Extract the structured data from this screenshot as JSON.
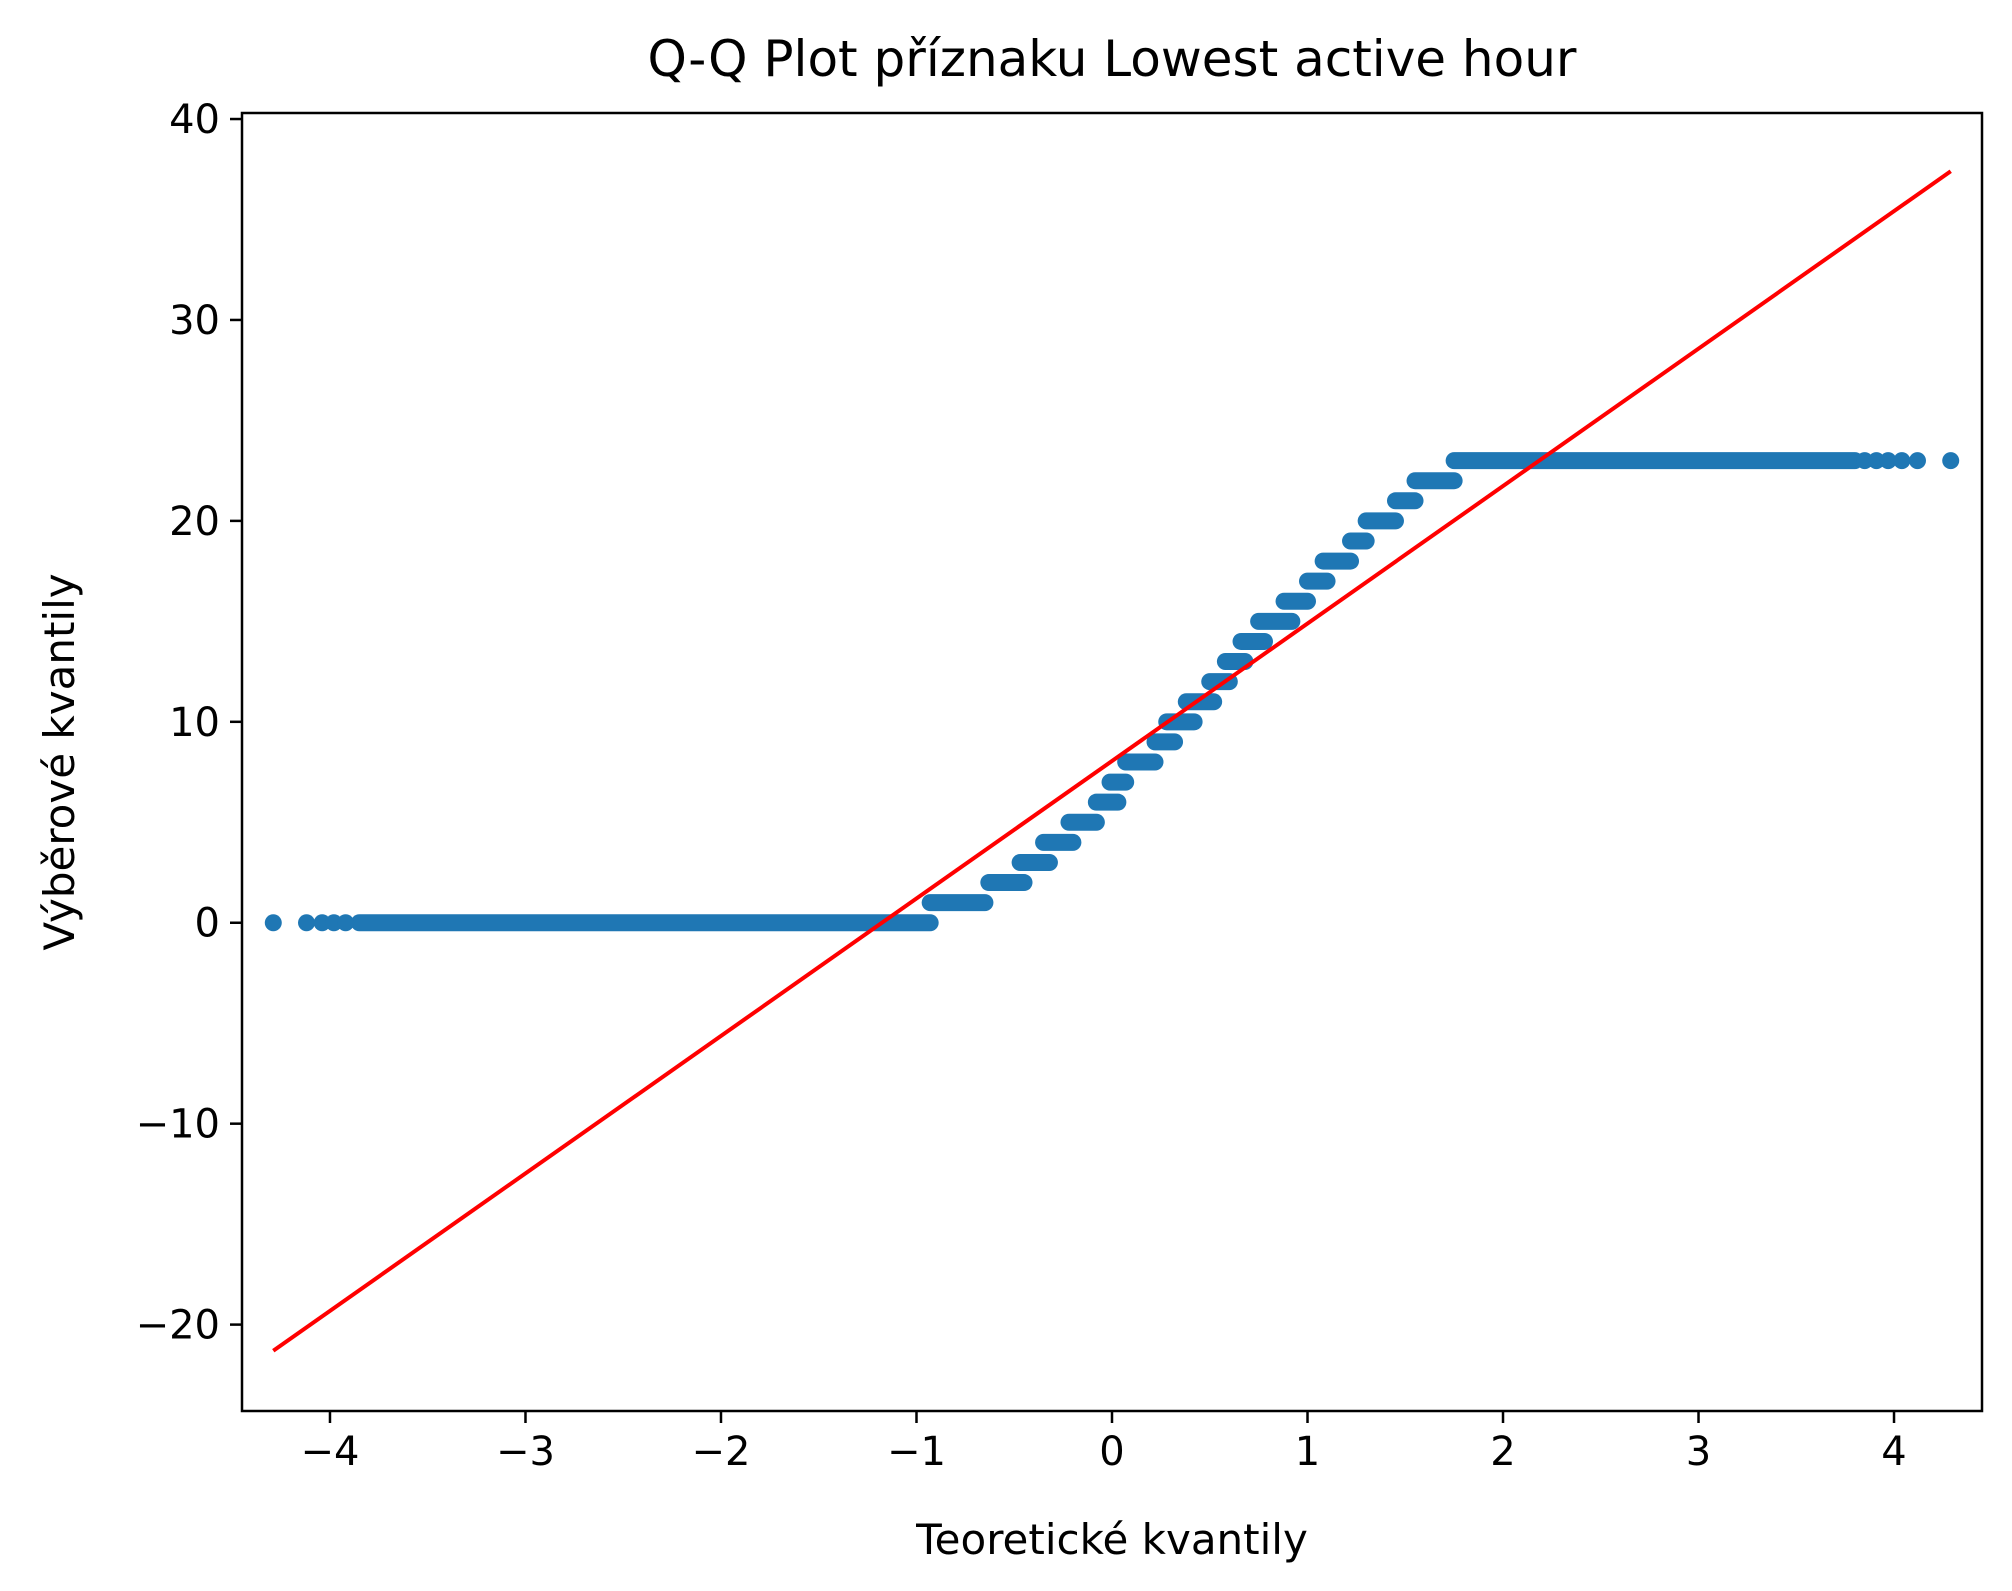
{
  "chart_data": {
    "type": "scatter",
    "title": "Q-Q Plot příznaku Lowest active hour",
    "xlabel": "Teoretické kvantily",
    "ylabel": "Výběrové kvantily",
    "xlim": [
      -4.45,
      4.45
    ],
    "ylim": [
      -24.3,
      40.3
    ],
    "x_ticks": [
      -4,
      -3,
      -2,
      -1,
      0,
      1,
      2,
      3,
      4
    ],
    "x_tick_labels": [
      "−4",
      "−3",
      "−2",
      "−1",
      "0",
      "1",
      "2",
      "3",
      "4"
    ],
    "y_ticks": [
      -20,
      -10,
      0,
      10,
      20,
      30,
      40
    ],
    "y_tick_labels": [
      "−20",
      "−10",
      "0",
      "10",
      "20",
      "30",
      "40"
    ],
    "grid": false,
    "legend": "none",
    "series": [
      {
        "kind": "points",
        "color": "#1f77b4",
        "segments": [
          {
            "y": 0,
            "x_from": -3.85,
            "x_to": -0.93
          },
          {
            "y": 1,
            "x_from": -0.93,
            "x_to": -0.65
          },
          {
            "y": 2,
            "x_from": -0.63,
            "x_to": -0.45
          },
          {
            "y": 3,
            "x_from": -0.47,
            "x_to": -0.32
          },
          {
            "y": 4,
            "x_from": -0.35,
            "x_to": -0.2
          },
          {
            "y": 5,
            "x_from": -0.22,
            "x_to": -0.08
          },
          {
            "y": 6,
            "x_from": -0.08,
            "x_to": 0.03
          },
          {
            "y": 7,
            "x_from": -0.01,
            "x_to": 0.07
          },
          {
            "y": 8,
            "x_from": 0.07,
            "x_to": 0.22
          },
          {
            "y": 9,
            "x_from": 0.22,
            "x_to": 0.32
          },
          {
            "y": 10,
            "x_from": 0.28,
            "x_to": 0.42
          },
          {
            "y": 11,
            "x_from": 0.38,
            "x_to": 0.52
          },
          {
            "y": 12,
            "x_from": 0.5,
            "x_to": 0.6
          },
          {
            "y": 13,
            "x_from": 0.58,
            "x_to": 0.68
          },
          {
            "y": 14,
            "x_from": 0.66,
            "x_to": 0.78
          },
          {
            "y": 15,
            "x_from": 0.75,
            "x_to": 0.92
          },
          {
            "y": 16,
            "x_from": 0.88,
            "x_to": 1.0
          },
          {
            "y": 17,
            "x_from": 1.0,
            "x_to": 1.1
          },
          {
            "y": 18,
            "x_from": 1.08,
            "x_to": 1.22
          },
          {
            "y": 19,
            "x_from": 1.22,
            "x_to": 1.3
          },
          {
            "y": 20,
            "x_from": 1.3,
            "x_to": 1.45
          },
          {
            "y": 21,
            "x_from": 1.45,
            "x_to": 1.55
          },
          {
            "y": 22,
            "x_from": 1.55,
            "x_to": 1.75
          },
          {
            "y": 23,
            "x_from": 1.75,
            "x_to": 3.8
          }
        ],
        "tail_points": [
          {
            "x": -4.29,
            "y": 0
          },
          {
            "x": -4.12,
            "y": 0
          },
          {
            "x": -4.04,
            "y": 0
          },
          {
            "x": -3.98,
            "y": 0
          },
          {
            "x": -3.92,
            "y": 0
          },
          {
            "x": 3.85,
            "y": 23
          },
          {
            "x": 3.91,
            "y": 23
          },
          {
            "x": 3.97,
            "y": 23
          },
          {
            "x": 4.04,
            "y": 23
          },
          {
            "x": 4.12,
            "y": 23
          },
          {
            "x": 4.29,
            "y": 23
          }
        ]
      },
      {
        "kind": "reference-line",
        "color": "#ff0000",
        "points": [
          {
            "x": -4.29,
            "y": -21.3
          },
          {
            "x": 4.29,
            "y": 37.4
          }
        ]
      }
    ]
  }
}
